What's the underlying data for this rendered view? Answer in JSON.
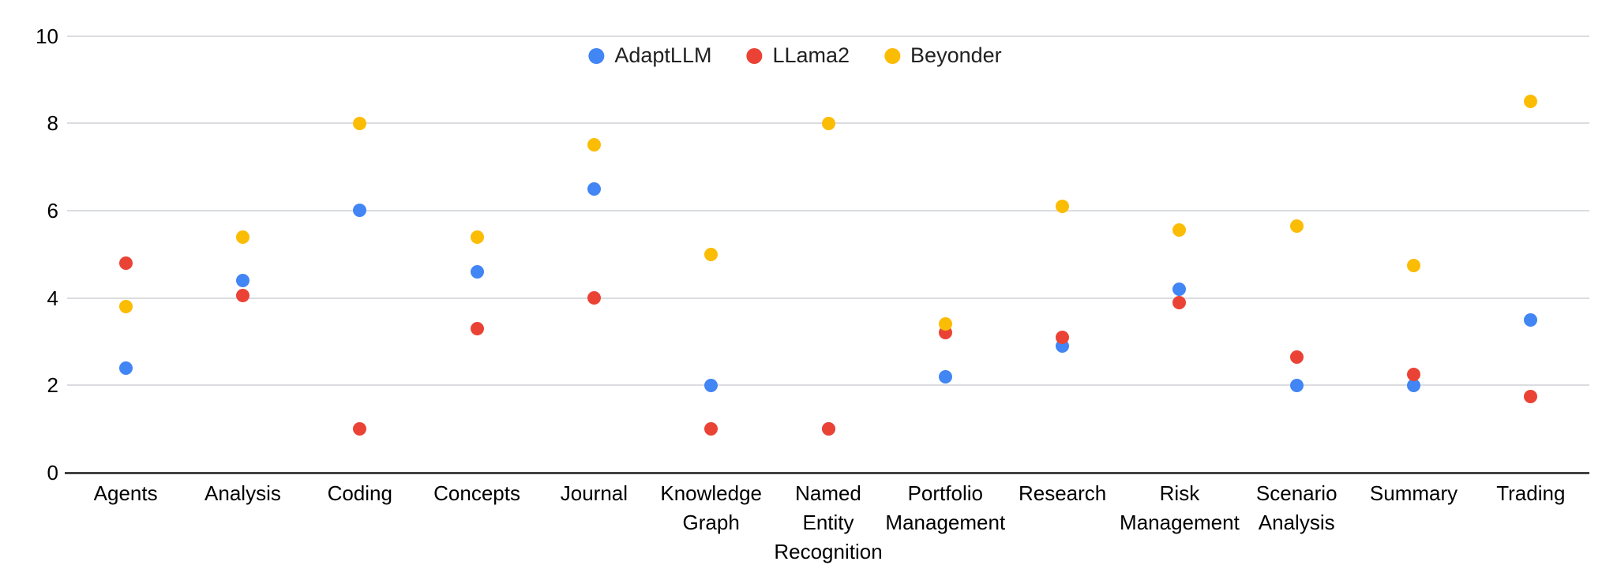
{
  "chart_data": {
    "type": "scatter",
    "title": "",
    "legend_position": "top-center",
    "grid": true,
    "background_color": "#ffffff",
    "gridline_color": "#dadce0",
    "axis_line_color": "#424242",
    "label_color": "#000000",
    "y_axis": {
      "label": "",
      "min": 0,
      "max": 10,
      "ticks": [
        0,
        2,
        4,
        6,
        8,
        10
      ]
    },
    "x_axis": {
      "label": ""
    },
    "categories": [
      "Agents",
      "Analysis",
      "Coding",
      "Concepts",
      "Journal",
      "Knowledge Graph",
      "Named Entity Recognition",
      "Portfolio Management",
      "Research",
      "Risk Management",
      "Scenario Analysis",
      "Summary",
      "Trading"
    ],
    "series": [
      {
        "name": "AdaptLLM",
        "color": "#4285f4",
        "values": [
          2.4,
          4.4,
          6.0,
          4.6,
          6.5,
          2.0,
          1.0,
          2.2,
          2.9,
          4.2,
          2.0,
          2.0,
          3.5
        ]
      },
      {
        "name": "LLama2",
        "color": "#ea4335",
        "values": [
          4.8,
          4.05,
          1.0,
          3.3,
          4.0,
          1.0,
          1.0,
          3.2,
          3.1,
          3.9,
          2.65,
          2.25,
          1.75
        ]
      },
      {
        "name": "Beyonder",
        "color": "#fbbc04",
        "values": [
          3.8,
          5.4,
          8.0,
          5.4,
          7.5,
          5.0,
          8.0,
          3.4,
          6.1,
          5.55,
          5.65,
          4.75,
          8.5
        ]
      }
    ]
  }
}
